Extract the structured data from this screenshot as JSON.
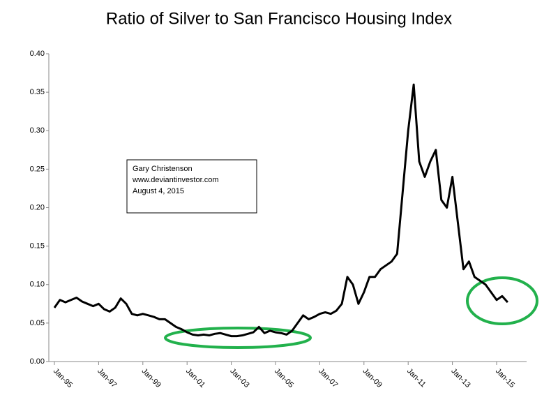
{
  "chart_data": {
    "type": "line",
    "title": "Ratio of Silver to San Francisco Housing Index",
    "annotation": [
      "Gary Christenson",
      "www.deviantinvestor.com",
      "August 4, 2015"
    ],
    "categories": [
      "Jan-95",
      null,
      null,
      null,
      null,
      null,
      null,
      null,
      "Jan-97",
      null,
      null,
      null,
      null,
      null,
      null,
      null,
      "Jan-99",
      null,
      null,
      null,
      null,
      null,
      null,
      null,
      "Jan-01",
      null,
      null,
      null,
      null,
      null,
      null,
      null,
      "Jan-03",
      null,
      null,
      null,
      null,
      null,
      null,
      null,
      "Jan-05",
      null,
      null,
      null,
      null,
      null,
      null,
      null,
      "Jan-07",
      null,
      null,
      null,
      null,
      null,
      null,
      null,
      "Jan-09",
      null,
      null,
      null,
      null,
      null,
      null,
      null,
      "Jan-11",
      null,
      null,
      null,
      null,
      null,
      null,
      null,
      "Jan-13",
      null,
      null,
      null,
      null,
      null,
      null,
      null,
      "Jan-15",
      null,
      null
    ],
    "values": [
      0.07,
      0.08,
      0.077,
      0.08,
      0.083,
      0.078,
      0.075,
      0.072,
      0.075,
      0.068,
      0.065,
      0.07,
      0.082,
      0.075,
      0.062,
      0.06,
      0.062,
      0.06,
      0.058,
      0.055,
      0.055,
      0.05,
      0.045,
      0.042,
      0.038,
      0.035,
      0.034,
      0.035,
      0.034,
      0.036,
      0.037,
      0.035,
      0.033,
      0.033,
      0.034,
      0.036,
      0.038,
      0.045,
      0.037,
      0.04,
      0.038,
      0.037,
      0.035,
      0.04,
      0.05,
      0.06,
      0.055,
      0.058,
      0.062,
      0.064,
      0.062,
      0.066,
      0.075,
      0.11,
      0.1,
      0.075,
      0.09,
      0.11,
      0.11,
      0.12,
      0.125,
      0.13,
      0.14,
      0.22,
      0.3,
      0.36,
      0.26,
      0.24,
      0.26,
      0.275,
      0.21,
      0.2,
      0.24,
      0.18,
      0.12,
      0.13,
      0.11,
      0.105,
      0.1,
      0.09,
      0.08,
      0.085,
      0.077
    ],
    "color": "#000000",
    "ylim": [
      0,
      0.4
    ],
    "yticks": [
      {
        "value": 0,
        "label": "0.00"
      },
      {
        "value": 0.05,
        "label": "0.05"
      },
      {
        "value": 0.1,
        "label": "0.10"
      },
      {
        "value": 0.15,
        "label": "0.15"
      },
      {
        "value": 0.2,
        "label": "0.20"
      },
      {
        "value": 0.25,
        "label": "0.25"
      },
      {
        "value": 0.3,
        "label": "0.30"
      },
      {
        "value": 0.35,
        "label": "0.35"
      },
      {
        "value": 0.4,
        "label": "0.40"
      }
    ]
  }
}
